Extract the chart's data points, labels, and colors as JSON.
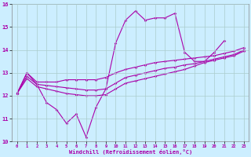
{
  "xlabel": "Windchill (Refroidissement éolien,°C)",
  "background_color": "#cceeff",
  "line_color": "#aa00aa",
  "grid_color": "#aacccc",
  "xlim": [
    -0.5,
    23.5
  ],
  "ylim": [
    10,
    16
  ],
  "xticks": [
    0,
    1,
    2,
    3,
    4,
    5,
    6,
    7,
    8,
    9,
    10,
    11,
    12,
    13,
    14,
    15,
    16,
    17,
    18,
    19,
    20,
    21,
    22,
    23
  ],
  "yticks": [
    10,
    11,
    12,
    13,
    14,
    15,
    16
  ],
  "series": {
    "line1": [
      12.1,
      13.0,
      12.5,
      11.7,
      11.4,
      10.8,
      11.2,
      10.2,
      11.5,
      12.3,
      14.3,
      15.3,
      15.7,
      15.3,
      15.4,
      15.4,
      15.6,
      13.9,
      13.5,
      13.5,
      13.9,
      14.4,
      null,
      null
    ],
    "line3": [
      12.1,
      13.0,
      12.6,
      12.6,
      12.6,
      12.7,
      12.7,
      12.7,
      12.7,
      12.8,
      13.0,
      13.15,
      13.25,
      13.35,
      13.45,
      13.5,
      13.55,
      13.6,
      13.65,
      13.7,
      13.75,
      13.85,
      13.95,
      14.1
    ],
    "line4": [
      12.1,
      12.85,
      12.5,
      12.45,
      12.4,
      12.35,
      12.3,
      12.25,
      12.25,
      12.3,
      12.55,
      12.8,
      12.9,
      13.0,
      13.1,
      13.2,
      13.25,
      13.35,
      13.4,
      13.5,
      13.6,
      13.7,
      13.8,
      14.0
    ],
    "line5": [
      12.1,
      12.75,
      12.4,
      12.3,
      12.2,
      12.1,
      12.05,
      12.0,
      12.0,
      12.05,
      12.3,
      12.55,
      12.65,
      12.75,
      12.85,
      12.95,
      13.05,
      13.15,
      13.3,
      13.45,
      13.55,
      13.65,
      13.75,
      13.95
    ]
  }
}
